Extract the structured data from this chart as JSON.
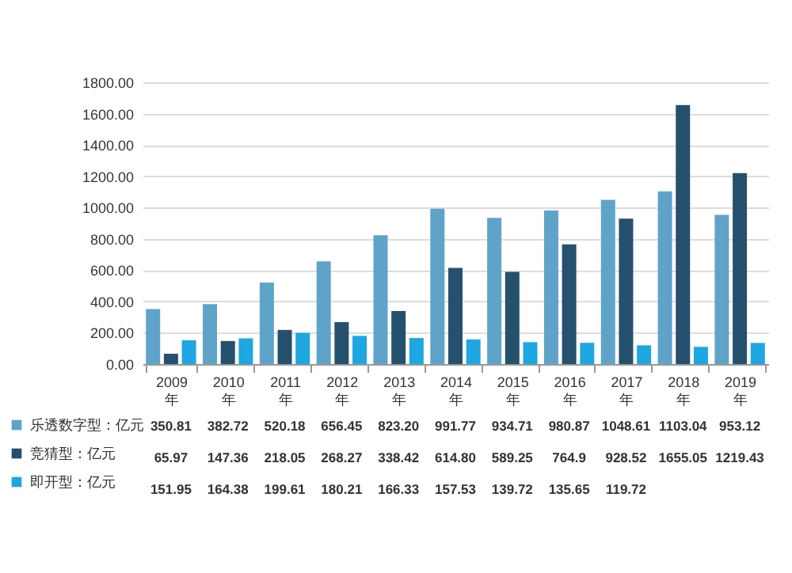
{
  "chart_data": {
    "type": "bar",
    "categories": [
      "2009年",
      "2010年",
      "2011年",
      "2012年",
      "2013年",
      "2014年",
      "2015年",
      "2016年",
      "2017年",
      "2018年",
      "2019年"
    ],
    "series": [
      {
        "name": "乐透数字型：亿元",
        "color": "#5fa3c9",
        "values": [
          350.81,
          382.72,
          520.18,
          656.45,
          823.2,
          991.77,
          934.71,
          980.87,
          1048.61,
          1103.04,
          953.12
        ],
        "value_labels": [
          "350.81",
          "382.72",
          "520.18",
          "656.45",
          "823.20",
          "991.77",
          "934.71",
          "980.87",
          "1048.61",
          "1103.04",
          "953.12"
        ]
      },
      {
        "name": "竞猜型：亿元",
        "color": "#25506e",
        "values": [
          65.97,
          147.36,
          218.05,
          268.27,
          338.42,
          614.8,
          589.25,
          764.9,
          928.52,
          1655.05,
          1219.43
        ],
        "value_labels": [
          "65.97",
          "147.36",
          "218.05",
          "268.27",
          "338.42",
          "614.80",
          "589.25",
          "764.9",
          "928.52",
          "1655.05",
          "1219.43"
        ]
      },
      {
        "name": "即开型：亿元",
        "color": "#1ea7e1",
        "values": [
          151.95,
          164.38,
          199.61,
          180.21,
          166.33,
          157.53,
          139.72,
          135.65,
          119.72,
          110,
          135
        ],
        "value_labels": [
          "151.95",
          "164.38",
          "199.61",
          "180.21",
          "166.33",
          "157.53",
          "139.72",
          "135.65",
          "119.72",
          null,
          null
        ]
      }
    ],
    "ylim": [
      0,
      1800
    ],
    "yticks": [
      {
        "value": 0,
        "label": "0.00"
      },
      {
        "value": 200,
        "label": "200.00"
      },
      {
        "value": 400,
        "label": "400.00"
      },
      {
        "value": 600,
        "label": "600.00"
      },
      {
        "value": 800,
        "label": "800.00"
      },
      {
        "value": 1000,
        "label": "1000.00"
      },
      {
        "value": 1200,
        "label": "1200.00"
      },
      {
        "value": 1400,
        "label": "1400.00"
      },
      {
        "value": 1600,
        "label": "1600.00"
      },
      {
        "value": 1800,
        "label": "1800.00"
      }
    ],
    "grid": "y",
    "legend": "bottom left",
    "data_labels": true
  }
}
